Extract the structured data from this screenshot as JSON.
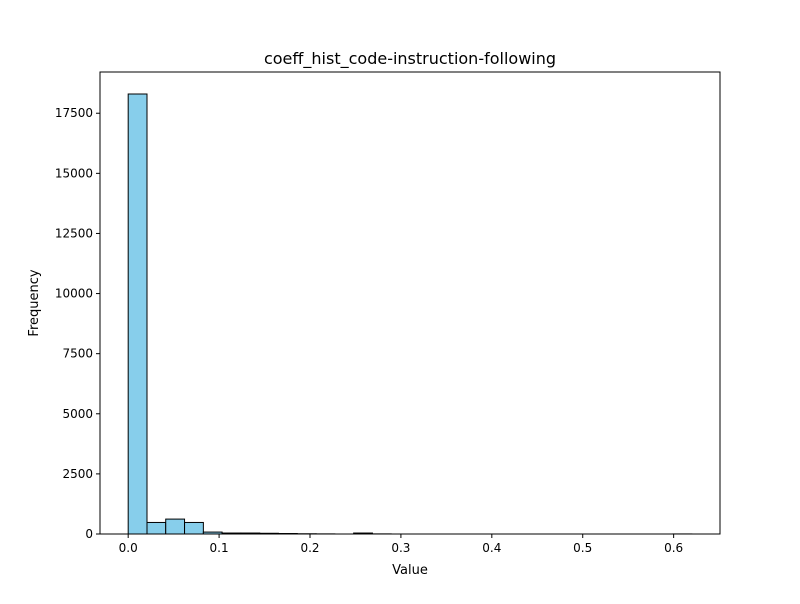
{
  "chart_data": {
    "type": "bar",
    "title": "coeff_hist_code-instruction-following",
    "xlabel": "Value",
    "ylabel": "Frequency",
    "bin_edges": [
      0.0,
      0.0207,
      0.0413,
      0.062,
      0.0827,
      0.1033,
      0.124,
      0.1447,
      0.1653,
      0.186,
      0.2067,
      0.2273,
      0.248,
      0.2687,
      0.2893,
      0.31,
      0.3307,
      0.3513,
      0.372,
      0.3927,
      0.4133,
      0.434,
      0.4547,
      0.4753,
      0.496,
      0.5167,
      0.5373,
      0.558,
      0.5787,
      0.5993,
      0.62
    ],
    "values": [
      18300,
      480,
      620,
      480,
      80,
      40,
      40,
      30,
      20,
      10,
      5,
      0,
      40,
      5,
      0,
      0,
      0,
      0,
      0,
      0,
      0,
      0,
      0,
      0,
      0,
      0,
      0,
      0,
      0,
      3
    ],
    "xlim": [
      -0.031,
      0.651
    ],
    "ylim": [
      0,
      19215
    ],
    "xticks": [
      0.0,
      0.1,
      0.2,
      0.3,
      0.4,
      0.5,
      0.6
    ],
    "xtick_labels": [
      "0.0",
      "0.1",
      "0.2",
      "0.3",
      "0.4",
      "0.5",
      "0.6"
    ],
    "yticks": [
      0,
      2500,
      5000,
      7500,
      10000,
      12500,
      15000,
      17500
    ],
    "ytick_labels": [
      "0",
      "2500",
      "5000",
      "7500",
      "10000",
      "12500",
      "15000",
      "17500"
    ],
    "grid": false,
    "bar_color": "#87ceeb",
    "edge_color": "#000000"
  }
}
